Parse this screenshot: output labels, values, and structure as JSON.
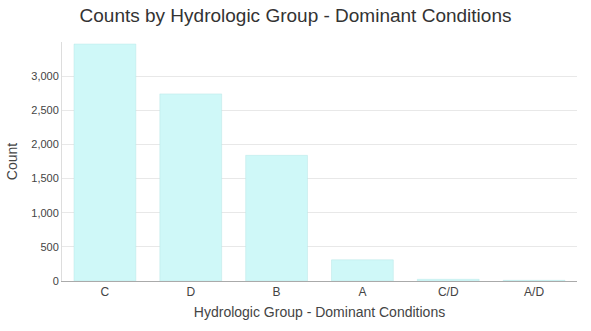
{
  "chart_data": {
    "type": "bar",
    "title": "Counts by Hydrologic Group - Dominant Conditions",
    "x_label": "Hydrologic Group - Dominant Conditions",
    "y_label": "Count",
    "categories": [
      "C",
      "D",
      "B",
      "A",
      "C/D",
      "A/D"
    ],
    "values": [
      3470,
      2740,
      1840,
      310,
      25,
      10
    ],
    "color": "#cff8f8",
    "ylim": [
      0,
      3500
    ],
    "yticks": [
      0,
      500,
      {
        "value": 1000,
        "label": "1,000"
      },
      {
        "value": 1500,
        "label": "1,500"
      },
      {
        "value": 2000,
        "label": "2,000"
      },
      {
        "value": 2500,
        "label": "2,500"
      },
      {
        "value": 3000,
        "label": "3,000"
      }
    ],
    "grid": true
  }
}
